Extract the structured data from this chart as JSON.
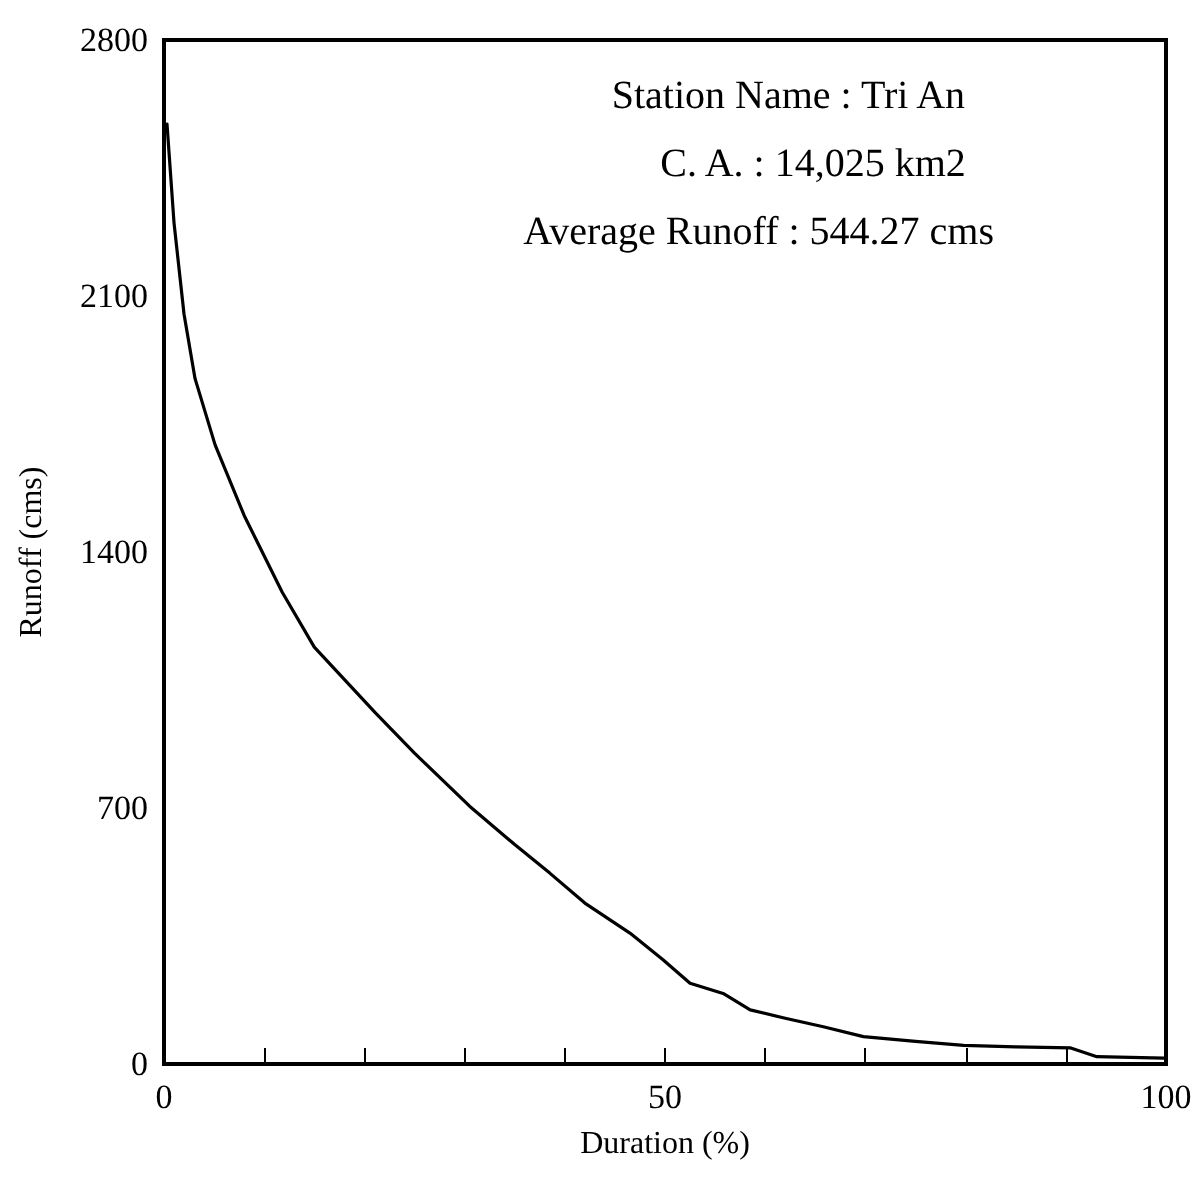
{
  "chart_data": {
    "type": "line",
    "xlabel": "Duration (%)",
    "ylabel": "Runoff (cms)",
    "annotations": [
      "Station Name : Tri An",
      "C. A. : 14,025 km2",
      "Average Runoff : 544.27 cms"
    ],
    "x": [
      0.3,
      1,
      2,
      3.1,
      5.1,
      8,
      11.8,
      15,
      21.1,
      25,
      30.5,
      35,
      38.5,
      42,
      46.5,
      49.8,
      52.5,
      55.8,
      58.5,
      62,
      65.8,
      69.8,
      75,
      79.8,
      85,
      90.5,
      93.1,
      99.8
    ],
    "series": [
      {
        "color": "#000000",
        "values": [
          2570,
          2300,
          2050,
          1874,
          1693,
          1500,
          1290,
          1140,
          960,
          850,
          705,
          600,
          522,
          440,
          358,
          285,
          221,
          193,
          148,
          125,
          102,
          75,
          62,
          51,
          47,
          44,
          20,
          16
        ]
      }
    ],
    "xlim": [
      0,
      100
    ],
    "ylim": [
      0,
      2800
    ],
    "xticks": [
      0,
      {
        "value": 10,
        "label": null
      },
      {
        "value": 20,
        "label": null
      },
      {
        "value": 30,
        "label": null
      },
      {
        "value": 40,
        "label": null
      },
      50,
      {
        "value": 60,
        "label": null
      },
      {
        "value": 70,
        "label": null
      },
      {
        "value": 80,
        "label": null
      },
      {
        "value": 90,
        "label": null
      },
      100
    ],
    "yticks": [
      0,
      700,
      1400,
      2100,
      2800
    ],
    "grid": false,
    "marker": "none",
    "line_style": "solid"
  }
}
